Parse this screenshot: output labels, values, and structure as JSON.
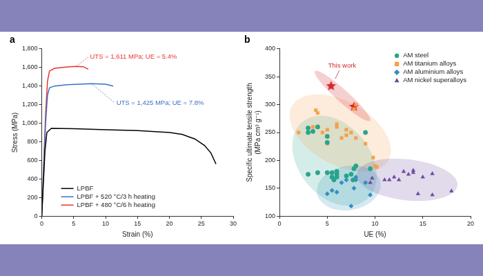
{
  "chart_data": [
    {
      "type": "line",
      "title": "a",
      "xlabel": "Strain (%)",
      "ylabel": "Stress (MPa)",
      "xlim": [
        0,
        30
      ],
      "xticks": [
        0,
        5,
        10,
        15,
        20,
        25,
        30
      ],
      "ylim": [
        0,
        1800
      ],
      "yticks": [
        0,
        200,
        400,
        600,
        800,
        {
          "value": 1000,
          "label": "1,000"
        },
        {
          "value": 1200,
          "label": "1,200"
        },
        {
          "value": 1400,
          "label": "1,400"
        },
        {
          "value": 1600,
          "label": "1,600"
        },
        {
          "value": 1800,
          "label": "1,800"
        }
      ],
      "grid": false,
      "legend": "lower left",
      "series": [
        {
          "name": "LPBF",
          "color": "#000000",
          "x": [
            0,
            0.5,
            0.8,
            1.5,
            5,
            10,
            15,
            20,
            22,
            24,
            25.5,
            26.5,
            27.3
          ],
          "values": [
            0,
            700,
            900,
            945,
            940,
            930,
            920,
            900,
            880,
            830,
            760,
            680,
            560
          ]
        },
        {
          "name": "LPBF + 520 °C/3 h heating",
          "color": "#3b6fc4",
          "x": [
            0,
            0.6,
            0.9,
            1.2,
            2,
            4,
            7.8,
            10,
            11.2
          ],
          "values": [
            0,
            1000,
            1300,
            1380,
            1400,
            1415,
            1425,
            1420,
            1400
          ]
        },
        {
          "name": "LPBF + 480 °C/6 h heating",
          "color": "#e8332e",
          "x": [
            0,
            0.6,
            0.9,
            1.2,
            2,
            4,
            5.4,
            6.5,
            7.3
          ],
          "values": [
            0,
            1100,
            1450,
            1560,
            1590,
            1605,
            1611,
            1608,
            1580
          ]
        }
      ],
      "annotations": [
        {
          "text": "UTS = 1,611 MPa; UE = 5.4%",
          "color": "#e8332e",
          "x": 5.4,
          "y": 1611
        },
        {
          "text": "UTS = 1,425 MPa; UE = 7.8%",
          "color": "#3b6fc4",
          "x": 7.8,
          "y": 1425
        }
      ]
    },
    {
      "type": "scatter",
      "title": "b",
      "xlabel": "UE (%)",
      "ylabel": [
        "Specific ultimate tensile strength",
        "(MPa cm³ g⁻¹)"
      ],
      "xlim": [
        0,
        20
      ],
      "xticks": [
        0,
        5,
        10,
        15,
        20
      ],
      "ylim": [
        100,
        400
      ],
      "yticks": [
        100,
        150,
        200,
        250,
        300,
        350,
        400
      ],
      "grid": false,
      "legend": "upper right",
      "series": [
        {
          "name": "AM steel",
          "color": "#2aa38a",
          "marker": "circle",
          "x": [
            3,
            3,
            3,
            3.5,
            4,
            4,
            5,
            5,
            5,
            5.5,
            5.5,
            5.7,
            6,
            6,
            6,
            7,
            7.5,
            7.8,
            7.7,
            8,
            9,
            9.5
          ],
          "values": [
            175,
            250,
            258,
            252,
            260,
            178,
            178,
            232,
            243,
            170,
            178,
            165,
            175,
            170,
            180,
            172,
            175,
            185,
            165,
            190,
            250,
            185
          ]
        },
        {
          "name": "AM titanium alloys",
          "color": "#f4a14b",
          "marker": "square",
          "x": [
            2,
            3,
            3.5,
            3.8,
            4,
            4.5,
            5,
            5,
            6,
            6,
            6.5,
            7,
            7,
            7.5,
            7.8,
            8,
            8,
            9,
            9.8,
            10,
            10.2
          ],
          "values": [
            250,
            250,
            260,
            290,
            285,
            250,
            255,
            230,
            260,
            265,
            240,
            245,
            255,
            250,
            292,
            240,
            300,
            230,
            205,
            190,
            188
          ]
        },
        {
          "name": "AM aluminium alloys",
          "color": "#2e8fbf",
          "marker": "diamond",
          "x": [
            5,
            5.5,
            6,
            6.5,
            7,
            7.5,
            7.8,
            8,
            8,
            9,
            9.5
          ],
          "values": [
            140,
            146,
            143,
            160,
            165,
            118,
            150,
            170,
            165,
            160,
            138
          ]
        },
        {
          "name": "AM nickel superalloys",
          "color": "#6b4aa0",
          "marker": "triangle",
          "x": [
            9.5,
            9.7,
            11,
            11.5,
            12,
            12.5,
            13,
            13.5,
            14,
            14,
            14.5,
            15,
            16,
            16,
            18
          ],
          "values": [
            160,
            168,
            165,
            165,
            170,
            165,
            180,
            175,
            178,
            182,
            140,
            170,
            176,
            138,
            145
          ]
        }
      ],
      "annotations": [
        {
          "text": "This work",
          "color": "#d7262b",
          "marker": "star",
          "x": [
            5.4,
            7.8
          ],
          "y": [
            334,
            297
          ]
        }
      ]
    }
  ]
}
